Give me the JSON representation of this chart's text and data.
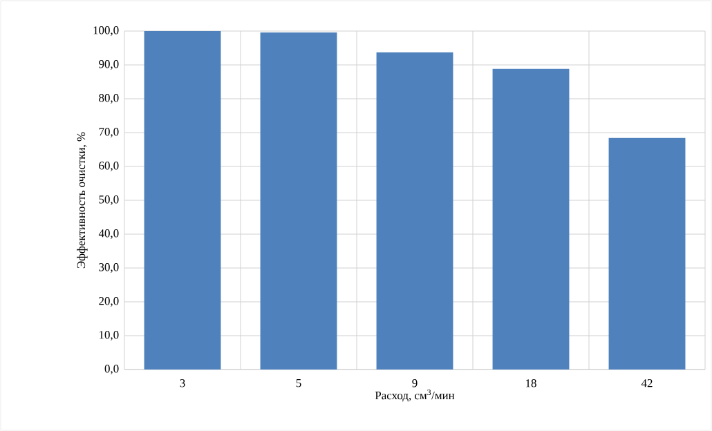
{
  "chart_data": {
    "type": "bar",
    "xlabel": "Расход, см$^{3}$/мин",
    "ylabel": "Эффективность очистки, %",
    "categories": [
      "3",
      "5",
      "9",
      "18",
      "42"
    ],
    "values": [
      100.0,
      99.6,
      93.7,
      88.8,
      68.4
    ],
    "color": "#4f81bd",
    "ylim": [
      0,
      100
    ],
    "yticks": [
      {
        "value": 0,
        "label": "0,0"
      },
      {
        "value": 10,
        "label": "10,0"
      },
      {
        "value": 20,
        "label": "20,0"
      },
      {
        "value": 30,
        "label": "30,0"
      },
      {
        "value": 40,
        "label": "40,0"
      },
      {
        "value": 50,
        "label": "50,0"
      },
      {
        "value": 60,
        "label": "60,0"
      },
      {
        "value": 70,
        "label": "70,0"
      },
      {
        "value": 80,
        "label": "80,0"
      },
      {
        "value": 90,
        "label": "90,0"
      },
      {
        "value": 100,
        "label": "100,0"
      }
    ],
    "grid": true
  }
}
